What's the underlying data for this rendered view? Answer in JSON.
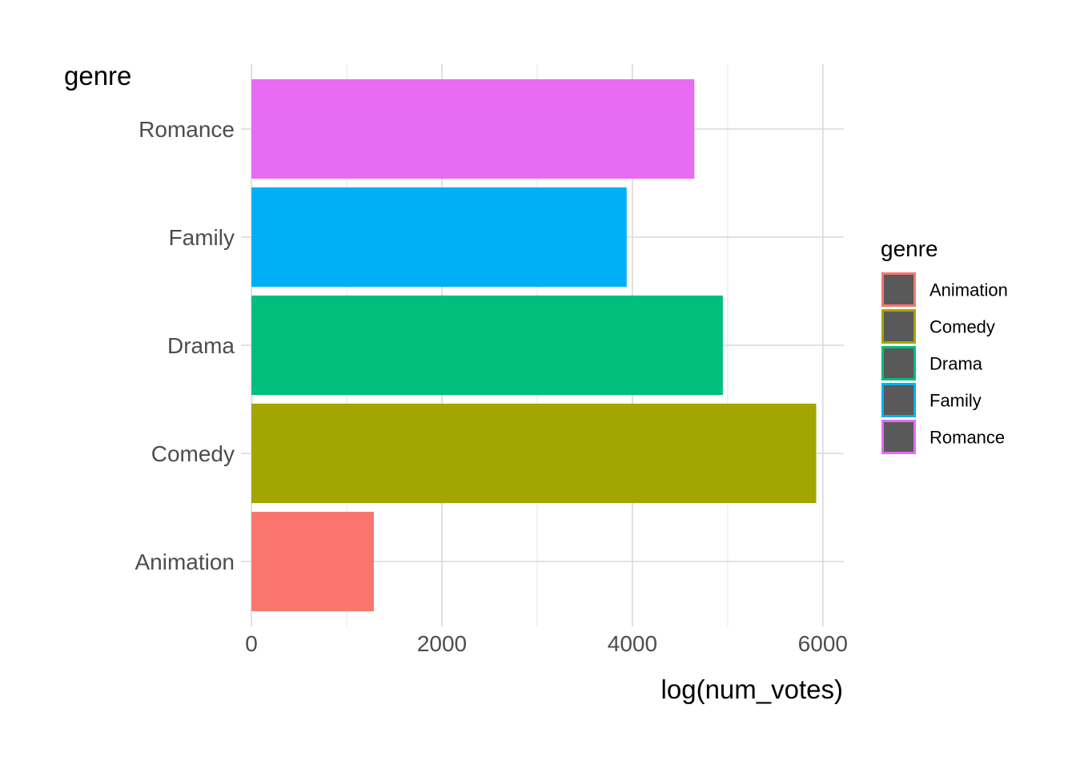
{
  "chart_data": {
    "type": "bar",
    "orientation": "horizontal",
    "categories": [
      "Animation",
      "Comedy",
      "Drama",
      "Family",
      "Romance"
    ],
    "values": [
      1285,
      5930,
      4950,
      3940,
      4650
    ],
    "colors": [
      "#F8766D",
      "#A3A500",
      "#00BF7D",
      "#00B0F6",
      "#E76BF3"
    ],
    "xlabel": "log(num_votes)",
    "ylabel": "genre",
    "xlim": [
      -110,
      6220
    ],
    "xticks": [
      0,
      2000,
      4000,
      6000
    ],
    "grid": true,
    "legend": {
      "title": "genre",
      "placement": "right",
      "entries": [
        "Animation",
        "Comedy",
        "Drama",
        "Family",
        "Romance"
      ],
      "key_fill": "#595959"
    }
  }
}
